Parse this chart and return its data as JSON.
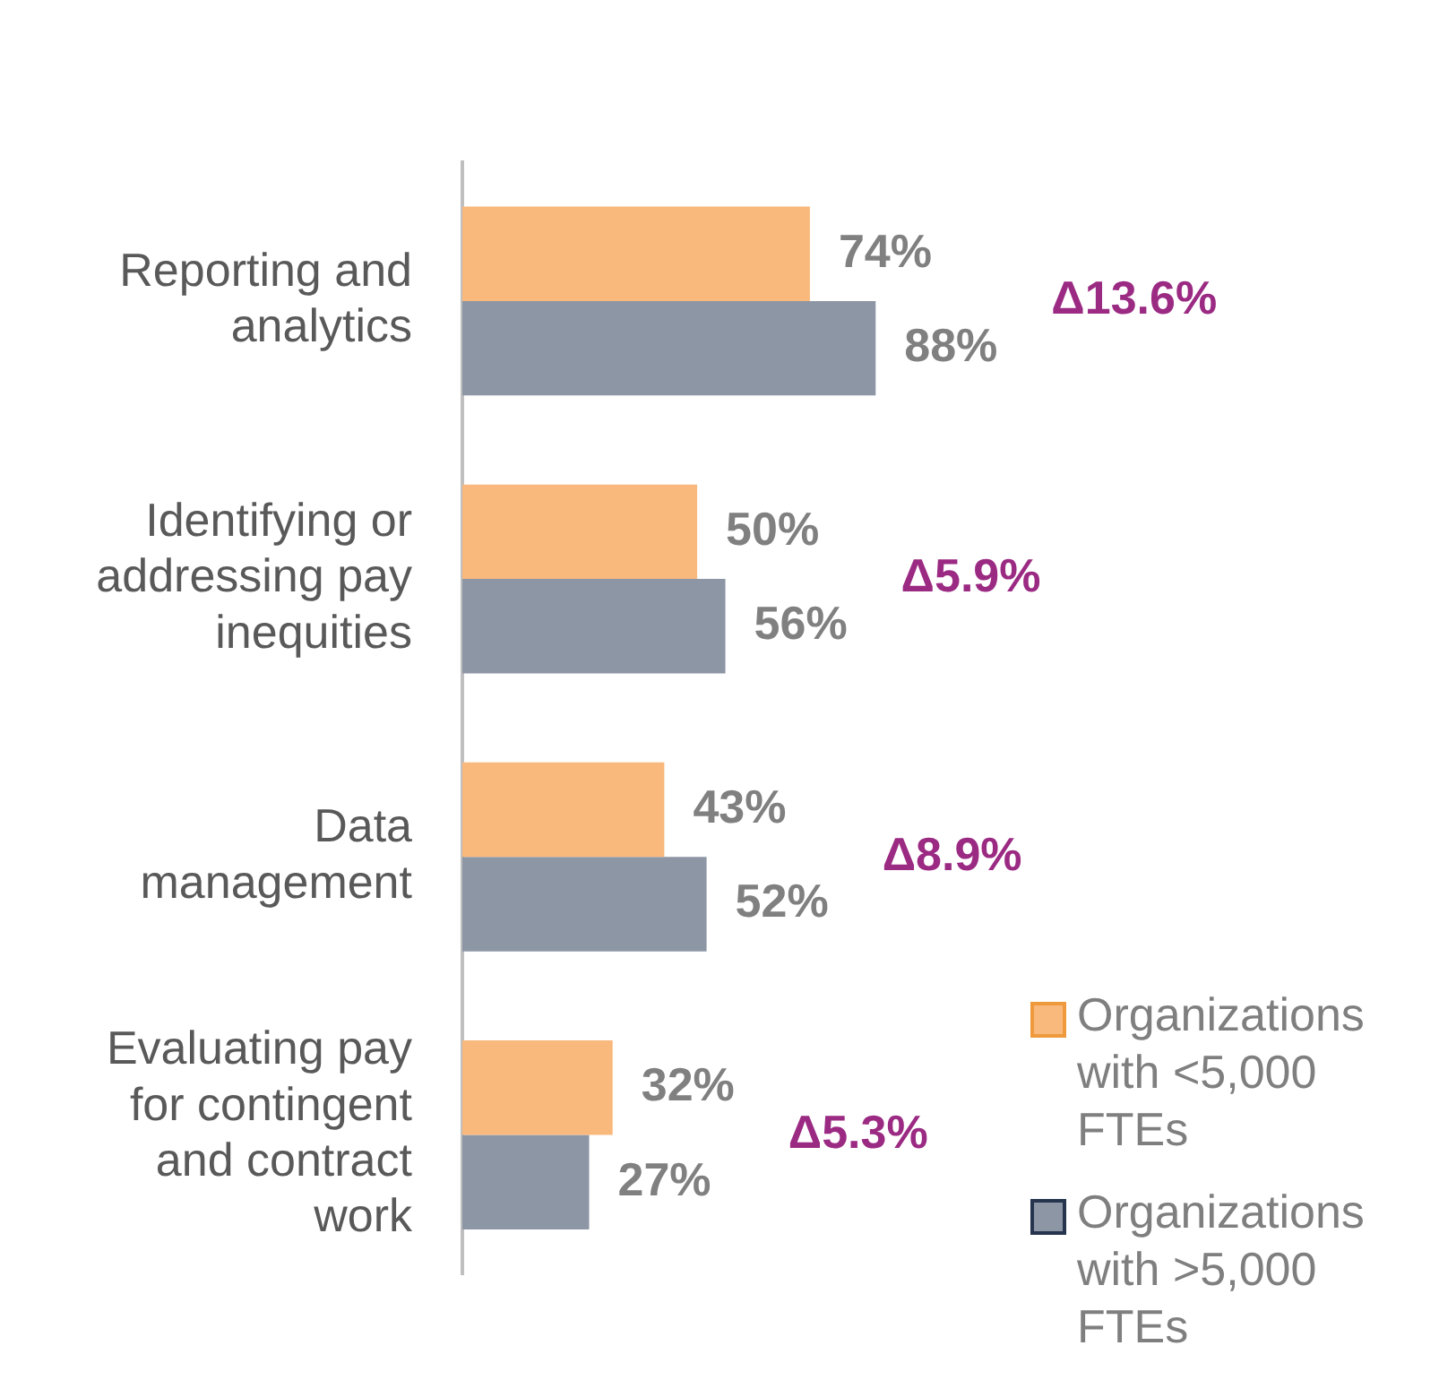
{
  "chart_data": {
    "type": "bar",
    "orientation": "horizontal",
    "categories": [
      "Reporting and analytics",
      "Identifying or addressing pay inequities",
      "Data management",
      "Evaluating pay for contingent and contract work"
    ],
    "series": [
      {
        "name": "Organizations with <5,000 FTEs",
        "color": "#f9b87c",
        "values": [
          74,
          50,
          43,
          32
        ],
        "value_labels": [
          "74%",
          "50%",
          "43%",
          "32%"
        ]
      },
      {
        "name": "Organizations with >5,000 FTEs",
        "color": "#8d96a5",
        "values": [
          88,
          56,
          52,
          27
        ],
        "value_labels": [
          "88%",
          "56%",
          "52%",
          "27%"
        ]
      }
    ],
    "annotations": [
      "Δ13.6%",
      "Δ5.9%",
      "Δ8.9%",
      "Δ5.3%"
    ],
    "legend": "bottom right"
  }
}
